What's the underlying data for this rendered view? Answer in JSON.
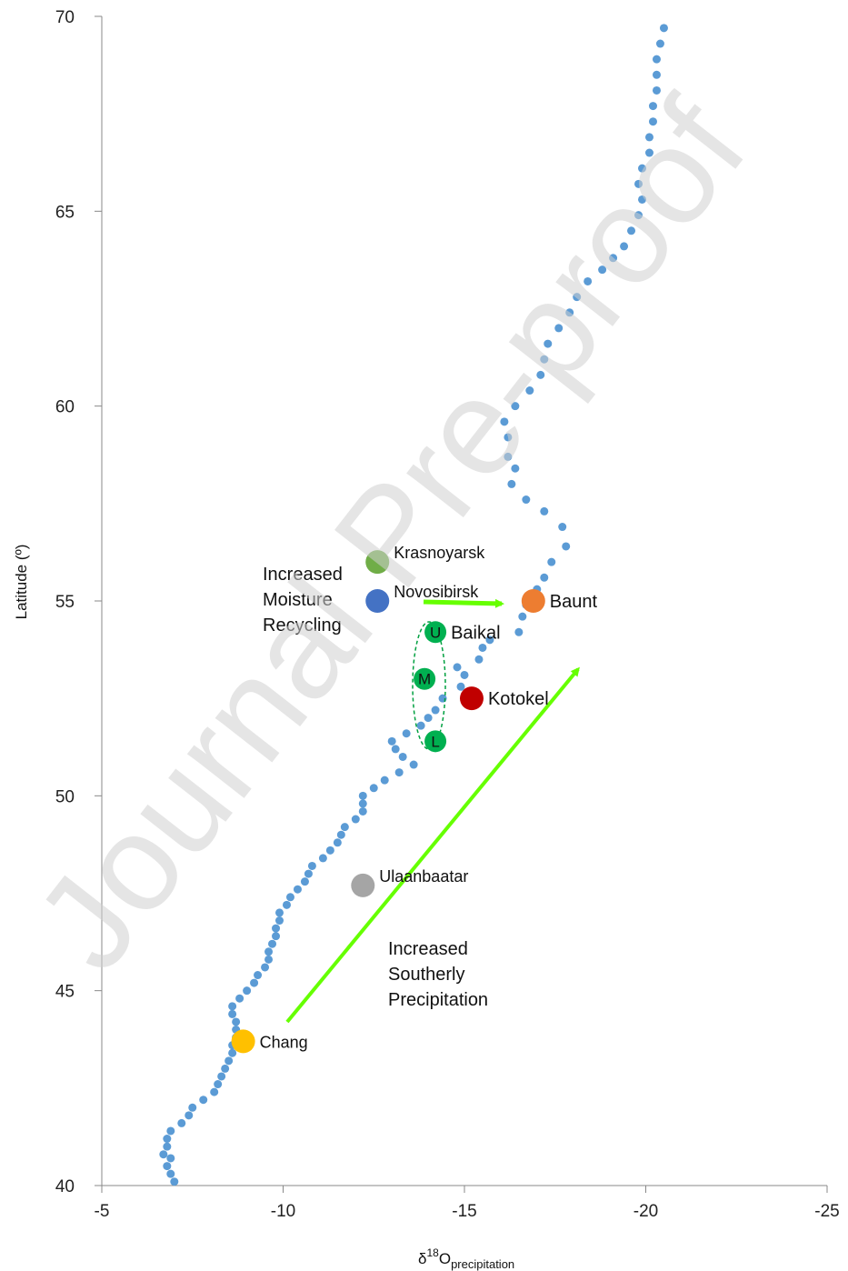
{
  "watermark": "Journal Pre-proof",
  "chart_data": {
    "type": "scatter",
    "xlabel": {
      "base": "δ",
      "sup": "18",
      "main": "O",
      "sub": "precipitation"
    },
    "ylabel": "Latitude (º)",
    "xlim": [
      -5,
      -25
    ],
    "ylim": [
      40,
      70
    ],
    "x_reversed": true,
    "xticks": [
      -5,
      -10,
      -15,
      -20,
      -25
    ],
    "yticks": [
      40,
      45,
      50,
      55,
      60,
      65,
      70
    ],
    "grid": false,
    "series_color": "#5b9bd5",
    "series": [
      {
        "name": "",
        "points": [
          [
            -7.0,
            40.1
          ],
          [
            -6.9,
            40.3
          ],
          [
            -6.8,
            40.5
          ],
          [
            -6.9,
            40.7
          ],
          [
            -6.7,
            40.8
          ],
          [
            -6.8,
            41.0
          ],
          [
            -6.8,
            41.2
          ],
          [
            -6.9,
            41.4
          ],
          [
            -7.2,
            41.6
          ],
          [
            -7.4,
            41.8
          ],
          [
            -7.5,
            42.0
          ],
          [
            -7.8,
            42.2
          ],
          [
            -8.1,
            42.4
          ],
          [
            -8.2,
            42.6
          ],
          [
            -8.3,
            42.8
          ],
          [
            -8.4,
            43.0
          ],
          [
            -8.5,
            43.2
          ],
          [
            -8.6,
            43.4
          ],
          [
            -8.6,
            43.6
          ],
          [
            -8.7,
            43.8
          ],
          [
            -8.7,
            44.0
          ],
          [
            -8.7,
            44.2
          ],
          [
            -8.6,
            44.4
          ],
          [
            -8.6,
            44.6
          ],
          [
            -8.8,
            44.8
          ],
          [
            -9.0,
            45.0
          ],
          [
            -9.2,
            45.2
          ],
          [
            -9.3,
            45.4
          ],
          [
            -9.5,
            45.6
          ],
          [
            -9.6,
            45.8
          ],
          [
            -9.6,
            46.0
          ],
          [
            -9.7,
            46.2
          ],
          [
            -9.8,
            46.4
          ],
          [
            -9.8,
            46.6
          ],
          [
            -9.9,
            46.8
          ],
          [
            -9.9,
            47.0
          ],
          [
            -10.1,
            47.2
          ],
          [
            -10.2,
            47.4
          ],
          [
            -10.4,
            47.6
          ],
          [
            -10.6,
            47.8
          ],
          [
            -10.7,
            48.0
          ],
          [
            -10.8,
            48.2
          ],
          [
            -11.1,
            48.4
          ],
          [
            -11.3,
            48.6
          ],
          [
            -11.5,
            48.8
          ],
          [
            -11.6,
            49.0
          ],
          [
            -11.7,
            49.2
          ],
          [
            -12.0,
            49.4
          ],
          [
            -12.2,
            49.6
          ],
          [
            -12.2,
            49.8
          ],
          [
            -12.2,
            50.0
          ],
          [
            -12.5,
            50.2
          ],
          [
            -12.8,
            50.4
          ],
          [
            -13.2,
            50.6
          ],
          [
            -13.6,
            50.8
          ],
          [
            -13.3,
            51.0
          ],
          [
            -13.1,
            51.2
          ],
          [
            -13.0,
            51.4
          ],
          [
            -13.4,
            51.6
          ],
          [
            -13.8,
            51.8
          ],
          [
            -14.0,
            52.0
          ],
          [
            -14.2,
            52.2
          ],
          [
            -14.4,
            52.5
          ],
          [
            -14.9,
            52.8
          ],
          [
            -15.0,
            53.1
          ],
          [
            -14.8,
            53.3
          ],
          [
            -15.4,
            53.5
          ],
          [
            -15.5,
            53.8
          ],
          [
            -15.7,
            54.0
          ],
          [
            -16.5,
            54.2
          ],
          [
            -16.6,
            54.6
          ],
          [
            -16.7,
            54.9
          ],
          [
            -17.0,
            55.3
          ],
          [
            -17.2,
            55.6
          ],
          [
            -17.4,
            56.0
          ],
          [
            -17.8,
            56.4
          ],
          [
            -17.7,
            56.9
          ],
          [
            -17.2,
            57.3
          ],
          [
            -16.7,
            57.6
          ],
          [
            -16.3,
            58.0
          ],
          [
            -16.4,
            58.4
          ],
          [
            -16.2,
            58.7
          ],
          [
            -16.2,
            59.2
          ],
          [
            -16.1,
            59.6
          ],
          [
            -16.4,
            60.0
          ],
          [
            -16.8,
            60.4
          ],
          [
            -17.1,
            60.8
          ],
          [
            -17.2,
            61.2
          ],
          [
            -17.3,
            61.6
          ],
          [
            -17.6,
            62.0
          ],
          [
            -17.9,
            62.4
          ],
          [
            -18.1,
            62.8
          ],
          [
            -18.4,
            63.2
          ],
          [
            -18.8,
            63.5
          ],
          [
            -19.1,
            63.8
          ],
          [
            -19.4,
            64.1
          ],
          [
            -19.6,
            64.5
          ],
          [
            -19.8,
            64.9
          ],
          [
            -19.9,
            65.3
          ],
          [
            -19.8,
            65.7
          ],
          [
            -19.9,
            66.1
          ],
          [
            -20.1,
            66.5
          ],
          [
            -20.1,
            66.9
          ],
          [
            -20.2,
            67.3
          ],
          [
            -20.2,
            67.7
          ],
          [
            -20.3,
            68.1
          ],
          [
            -20.3,
            68.5
          ],
          [
            -20.3,
            68.9
          ],
          [
            -20.4,
            69.3
          ],
          [
            -20.5,
            69.7
          ]
        ]
      }
    ],
    "sites": [
      {
        "name": "Krasnoyarsk",
        "x": -12.6,
        "y": 56.0,
        "color": "#70ad47"
      },
      {
        "name": "Novosibirsk",
        "x": -12.6,
        "y": 55.0,
        "color": "#4472c4"
      },
      {
        "name": "Baunt",
        "x": -16.9,
        "y": 55.0,
        "color": "#ed7d31"
      },
      {
        "name": "Baikal",
        "x": -14.2,
        "y": 54.2,
        "color": "#00b050",
        "marker": "U"
      },
      {
        "name": "",
        "x": -13.9,
        "y": 53.0,
        "color": "#00b050",
        "marker": "M"
      },
      {
        "name": "",
        "x": -14.2,
        "y": 51.4,
        "color": "#00b050",
        "marker": "L"
      },
      {
        "name": "Kotokel",
        "x": -15.2,
        "y": 52.5,
        "color": "#c00000"
      },
      {
        "name": "Ulaanbaatar",
        "x": -12.2,
        "y": 47.7,
        "color": "#a5a5a5"
      },
      {
        "name": "Chang",
        "x": -8.9,
        "y": 43.7,
        "color": "#ffc000"
      }
    ],
    "annotations": {
      "moisture": [
        "Increased",
        "Moisture",
        "Recycling"
      ],
      "southerly": [
        "Increased",
        "Southerly",
        "Precipitation"
      ]
    },
    "arrow_color": "#66ff00"
  }
}
